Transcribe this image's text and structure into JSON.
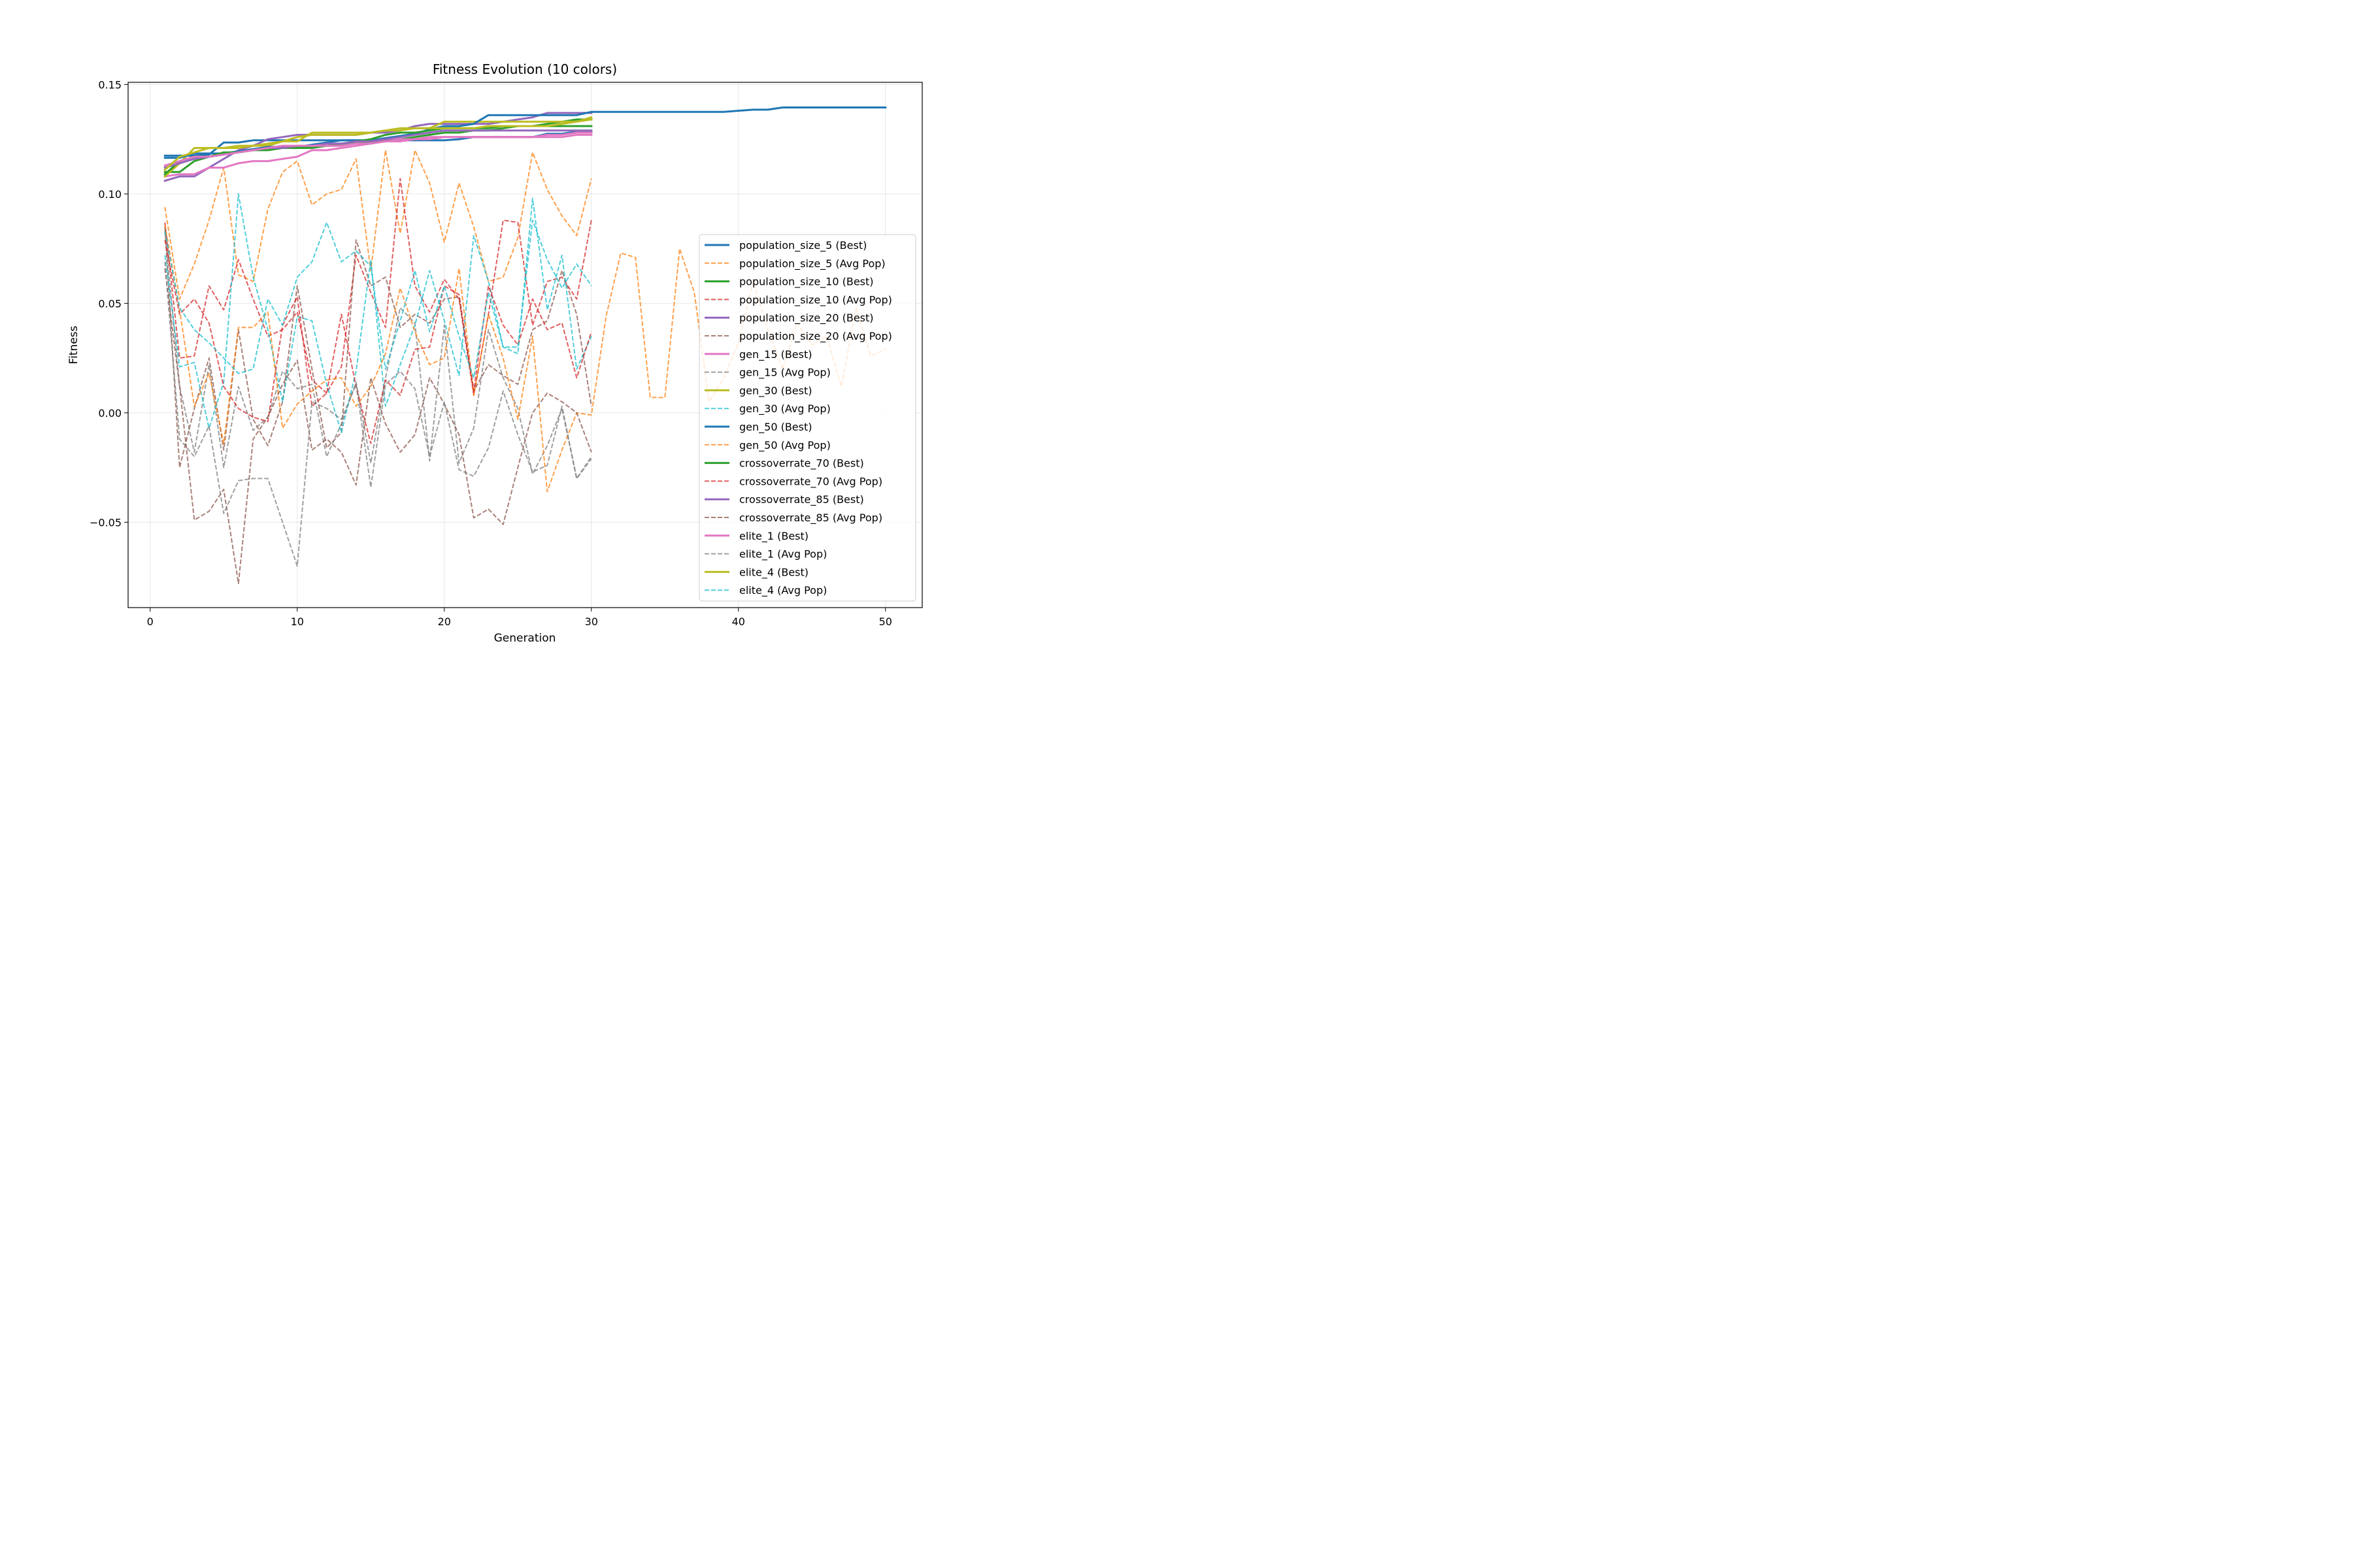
{
  "chart_data": {
    "type": "line",
    "title": "Fitness Evolution (10 colors)",
    "xlabel": "Generation",
    "ylabel": "Fitness",
    "xlim": [
      -1.5,
      52.5
    ],
    "ylim": [
      -0.089,
      0.151
    ],
    "xticks": [
      0,
      10,
      20,
      30,
      40,
      50
    ],
    "xtick_labels": [
      "0",
      "10",
      "20",
      "30",
      "40",
      "50"
    ],
    "yticks": [
      -0.05,
      0.0,
      0.05,
      0.1,
      0.15
    ],
    "ytick_labels": [
      "−0.05",
      "0.00",
      "0.05",
      "0.10",
      "0.15"
    ],
    "grid": true,
    "legend_position": "right",
    "series": [
      {
        "name": "population_size_5 (Best)",
        "color": "#1f77b4",
        "dashed": false,
        "y": [
          0.1175,
          0.1175,
          0.1175,
          0.118,
          0.1235,
          0.1235,
          0.1245,
          0.1245,
          0.1245,
          0.1245,
          0.1245,
          0.1245,
          0.1245,
          0.1245,
          0.1245,
          0.1245,
          0.1245,
          0.1245,
          0.1245,
          0.1245,
          0.125,
          0.126,
          0.126,
          0.126,
          0.126,
          0.126,
          0.1275,
          0.1275,
          0.1285,
          0.1285
        ]
      },
      {
        "name": "population_size_5 (Avg Pop)",
        "color": "#ff7f0e",
        "dashed": true,
        "y": [
          0.094,
          0.052,
          0.068,
          0.088,
          0.112,
          0.063,
          0.06,
          0.093,
          0.11,
          0.115,
          0.095,
          0.1,
          0.102,
          0.116,
          0.065,
          0.12,
          0.082,
          0.12,
          0.105,
          0.078,
          0.105,
          0.085,
          0.06,
          0.062,
          0.08,
          0.119,
          0.102,
          0.09,
          0.081,
          0.107
        ]
      },
      {
        "name": "population_size_10 (Best)",
        "color": "#2ca02c",
        "dashed": false,
        "y": [
          0.11,
          0.11,
          0.115,
          0.117,
          0.118,
          0.119,
          0.12,
          0.12,
          0.121,
          0.121,
          0.121,
          0.122,
          0.123,
          0.123,
          0.124,
          0.124,
          0.125,
          0.126,
          0.127,
          0.128,
          0.128,
          0.129,
          0.129,
          0.13,
          0.131,
          0.131,
          0.132,
          0.133,
          0.134,
          0.134
        ]
      },
      {
        "name": "population_size_10 (Avg Pop)",
        "color": "#d62728",
        "dashed": true,
        "y": [
          0.087,
          0.025,
          0.026,
          0.058,
          0.047,
          0.07,
          0.052,
          0.035,
          0.038,
          0.046,
          0.015,
          0.009,
          0.021,
          0.072,
          0.055,
          0.039,
          0.107,
          0.058,
          0.046,
          0.061,
          0.052,
          0.008,
          0.045,
          0.088,
          0.087,
          0.04,
          0.06,
          0.062,
          0.052,
          0.088
        ]
      },
      {
        "name": "population_size_20 (Best)",
        "color": "#9467bd",
        "dashed": false,
        "y": [
          0.106,
          0.108,
          0.108,
          0.112,
          0.116,
          0.12,
          0.122,
          0.125,
          0.126,
          0.127,
          0.127,
          0.127,
          0.127,
          0.127,
          0.128,
          0.128,
          0.129,
          0.131,
          0.132,
          0.132,
          0.132,
          0.132,
          0.132,
          0.133,
          0.134,
          0.135,
          0.137,
          0.137,
          0.137,
          0.137
        ]
      },
      {
        "name": "population_size_20 (Avg Pop)",
        "color": "#8c564b",
        "dashed": true,
        "y": [
          0.085,
          -0.025,
          0.002,
          0.025,
          -0.017,
          0.038,
          -0.003,
          -0.015,
          0.005,
          0.058,
          0.02,
          -0.016,
          -0.009,
          0.079,
          0.058,
          0.062,
          0.039,
          0.045,
          0.041,
          0.052,
          0.053,
          0.01,
          0.022,
          0.017,
          0.013,
          0.038,
          0.042,
          0.065,
          0.045,
          0.003
        ]
      },
      {
        "name": "gen_15 (Best)",
        "color": "#e377c2",
        "dashed": false,
        "y": [
          0.108,
          0.109,
          0.109,
          0.112,
          0.112,
          0.114,
          0.115,
          0.115,
          0.116,
          0.117,
          0.12,
          0.12,
          0.121,
          0.122,
          0.123,
          0.124,
          0.125,
          0.125,
          0.126,
          0.126,
          0.126,
          0.126,
          0.126,
          0.126,
          0.126,
          0.126,
          0.126,
          0.126,
          0.127,
          0.127
        ]
      },
      {
        "name": "gen_15 (Avg Pop)",
        "color": "#7f7f7f",
        "dashed": true,
        "y": [
          0.083,
          0.012,
          -0.018,
          0.022,
          -0.025,
          0.012,
          -0.008,
          -0.002,
          0.019,
          0.011,
          0.013,
          -0.02,
          -0.005,
          0.014,
          -0.023,
          0.016,
          0.048,
          0.041,
          -0.022,
          0.04,
          -0.023,
          -0.007,
          0.038,
          0.016,
          0.002,
          -0.028,
          -0.015,
          0.002,
          -0.03,
          -0.021
        ]
      },
      {
        "name": "gen_30 (Best)",
        "color": "#bcbd22",
        "dashed": false,
        "y": [
          0.108,
          0.114,
          0.121,
          0.121,
          0.121,
          0.122,
          0.122,
          0.122,
          0.124,
          0.124,
          0.128,
          0.128,
          0.128,
          0.128,
          0.128,
          0.129,
          0.129,
          0.13,
          0.13,
          0.133,
          0.133,
          0.133,
          0.133,
          0.133,
          0.133,
          0.133,
          0.133,
          0.133,
          0.133,
          0.135
        ]
      },
      {
        "name": "gen_30 (Avg Pop)",
        "color": "#17becf",
        "dashed": true,
        "y": [
          0.072,
          0.021,
          0.023,
          -0.007,
          0.014,
          0.1,
          0.062,
          0.038,
          0.005,
          0.044,
          0.042,
          0.013,
          -0.009,
          0.019,
          0.07,
          0.003,
          0.022,
          0.04,
          0.065,
          0.042,
          0.017,
          0.081,
          0.06,
          0.03,
          0.027,
          0.098,
          0.047,
          0.072,
          0.02,
          0.035
        ]
      },
      {
        "name": "gen_50 (Best)",
        "color": "#1f77b4",
        "dashed": false,
        "y": [
          0.1165,
          0.1165,
          0.1185,
          0.1185,
          0.1185,
          0.1195,
          0.1205,
          0.1215,
          0.1215,
          0.1215,
          0.1225,
          0.1235,
          0.1245,
          0.1245,
          0.1245,
          0.1255,
          0.1265,
          0.1275,
          0.1295,
          0.131,
          0.131,
          0.132,
          0.136,
          0.136,
          0.136,
          0.136,
          0.136,
          0.136,
          0.136,
          0.1375,
          0.1375,
          0.1375,
          0.1375,
          0.1375,
          0.1375,
          0.1375,
          0.1375,
          0.1375,
          0.1375,
          0.138,
          0.1385,
          0.1385,
          0.1395,
          0.1395,
          0.1395,
          0.1395,
          0.1395,
          0.1395,
          0.1395,
          0.1395
        ]
      },
      {
        "name": "gen_50 (Avg Pop)",
        "color": "#ff7f0e",
        "dashed": true,
        "y": [
          0.086,
          0.047,
          0.003,
          0.018,
          -0.014,
          0.039,
          0.039,
          0.046,
          -0.007,
          0.004,
          0.01,
          0.015,
          0.016,
          0.003,
          0.012,
          0.027,
          0.057,
          0.037,
          0.022,
          0.025,
          0.066,
          0.008,
          0.045,
          0.025,
          -0.003,
          0.035,
          -0.036,
          -0.017,
          0.0,
          -0.001,
          0.044,
          0.073,
          0.071,
          0.007,
          0.007,
          0.075,
          0.055,
          0.005,
          0.016,
          0.032,
          0.06,
          0.038,
          0.02,
          0.041,
          0.031,
          0.035,
          0.012,
          0.048,
          0.026,
          0.029
        ]
      },
      {
        "name": "crossoverrate_70 (Best)",
        "color": "#2ca02c",
        "dashed": false,
        "y": [
          0.109,
          0.115,
          0.117,
          0.117,
          0.119,
          0.119,
          0.12,
          0.121,
          0.121,
          0.121,
          0.122,
          0.122,
          0.122,
          0.124,
          0.125,
          0.127,
          0.128,
          0.128,
          0.129,
          0.13,
          0.13,
          0.13,
          0.13,
          0.131,
          0.131,
          0.131,
          0.131,
          0.131,
          0.131,
          0.131
        ]
      },
      {
        "name": "crossoverrate_70 (Avg Pop)",
        "color": "#d62728",
        "dashed": true,
        "y": [
          0.079,
          0.045,
          0.052,
          0.041,
          0.012,
          0.002,
          -0.002,
          -0.004,
          0.04,
          0.053,
          0.003,
          0.009,
          0.045,
          0.012,
          -0.014,
          0.015,
          0.008,
          0.029,
          0.03,
          0.058,
          0.054,
          0.01,
          0.058,
          0.04,
          0.031,
          0.052,
          0.038,
          0.041,
          0.016,
          0.037
        ]
      },
      {
        "name": "crossoverrate_85 (Best)",
        "color": "#9467bd",
        "dashed": false,
        "y": [
          0.112,
          0.114,
          0.116,
          0.117,
          0.118,
          0.119,
          0.12,
          0.121,
          0.121,
          0.122,
          0.122,
          0.123,
          0.123,
          0.124,
          0.124,
          0.125,
          0.126,
          0.127,
          0.128,
          0.129,
          0.129,
          0.129,
          0.129,
          0.129,
          0.129,
          0.129,
          0.129,
          0.129,
          0.129,
          0.129
        ]
      },
      {
        "name": "crossoverrate_85 (Avg Pop)",
        "color": "#8c564b",
        "dashed": true,
        "y": [
          0.066,
          0.012,
          -0.049,
          -0.045,
          -0.035,
          -0.078,
          -0.012,
          -0.002,
          0.013,
          0.024,
          -0.017,
          -0.012,
          -0.018,
          -0.033,
          0.016,
          -0.005,
          -0.018,
          -0.01,
          0.016,
          0.004,
          -0.01,
          -0.048,
          -0.044,
          -0.051,
          -0.025,
          0.0,
          0.009,
          0.005,
          0.0,
          -0.018
        ]
      },
      {
        "name": "elite_1 (Best)",
        "color": "#e377c2",
        "dashed": false,
        "y": [
          0.113,
          0.115,
          0.117,
          0.117,
          0.118,
          0.119,
          0.12,
          0.121,
          0.122,
          0.122,
          0.122,
          0.122,
          0.122,
          0.123,
          0.123,
          0.124,
          0.124,
          0.125,
          0.125,
          0.126,
          0.126,
          0.126,
          0.126,
          0.126,
          0.126,
          0.126,
          0.127,
          0.127,
          0.128,
          0.128
        ]
      },
      {
        "name": "elite_1 (Avg Pop)",
        "color": "#7f7f7f",
        "dashed": true,
        "y": [
          0.069,
          -0.012,
          -0.02,
          -0.006,
          -0.046,
          -0.031,
          -0.03,
          -0.03,
          -0.05,
          -0.07,
          0.005,
          0.002,
          -0.003,
          0.013,
          -0.034,
          0.013,
          0.019,
          0.011,
          -0.02,
          0.005,
          -0.026,
          -0.029,
          -0.016,
          0.01,
          -0.01,
          -0.027,
          -0.024,
          0.003,
          -0.03,
          -0.02
        ]
      },
      {
        "name": "elite_4 (Best)",
        "color": "#bcbd22",
        "dashed": false,
        "y": [
          0.111,
          0.117,
          0.119,
          0.121,
          0.121,
          0.121,
          0.122,
          0.123,
          0.124,
          0.126,
          0.127,
          0.127,
          0.127,
          0.127,
          0.128,
          0.129,
          0.13,
          0.13,
          0.13,
          0.13,
          0.13,
          0.13,
          0.131,
          0.131,
          0.131,
          0.131,
          0.131,
          0.132,
          0.133,
          0.134
        ]
      },
      {
        "name": "elite_4 (Avg Pop)",
        "color": "#17becf",
        "dashed": true,
        "y": [
          0.083,
          0.048,
          0.038,
          0.032,
          0.025,
          0.018,
          0.02,
          0.052,
          0.04,
          0.062,
          0.069,
          0.087,
          0.069,
          0.074,
          0.067,
          0.02,
          0.042,
          0.065,
          0.037,
          0.058,
          0.035,
          0.016,
          0.055,
          0.03,
          0.03,
          0.088,
          0.07,
          0.057,
          0.068,
          0.058
        ]
      }
    ]
  }
}
